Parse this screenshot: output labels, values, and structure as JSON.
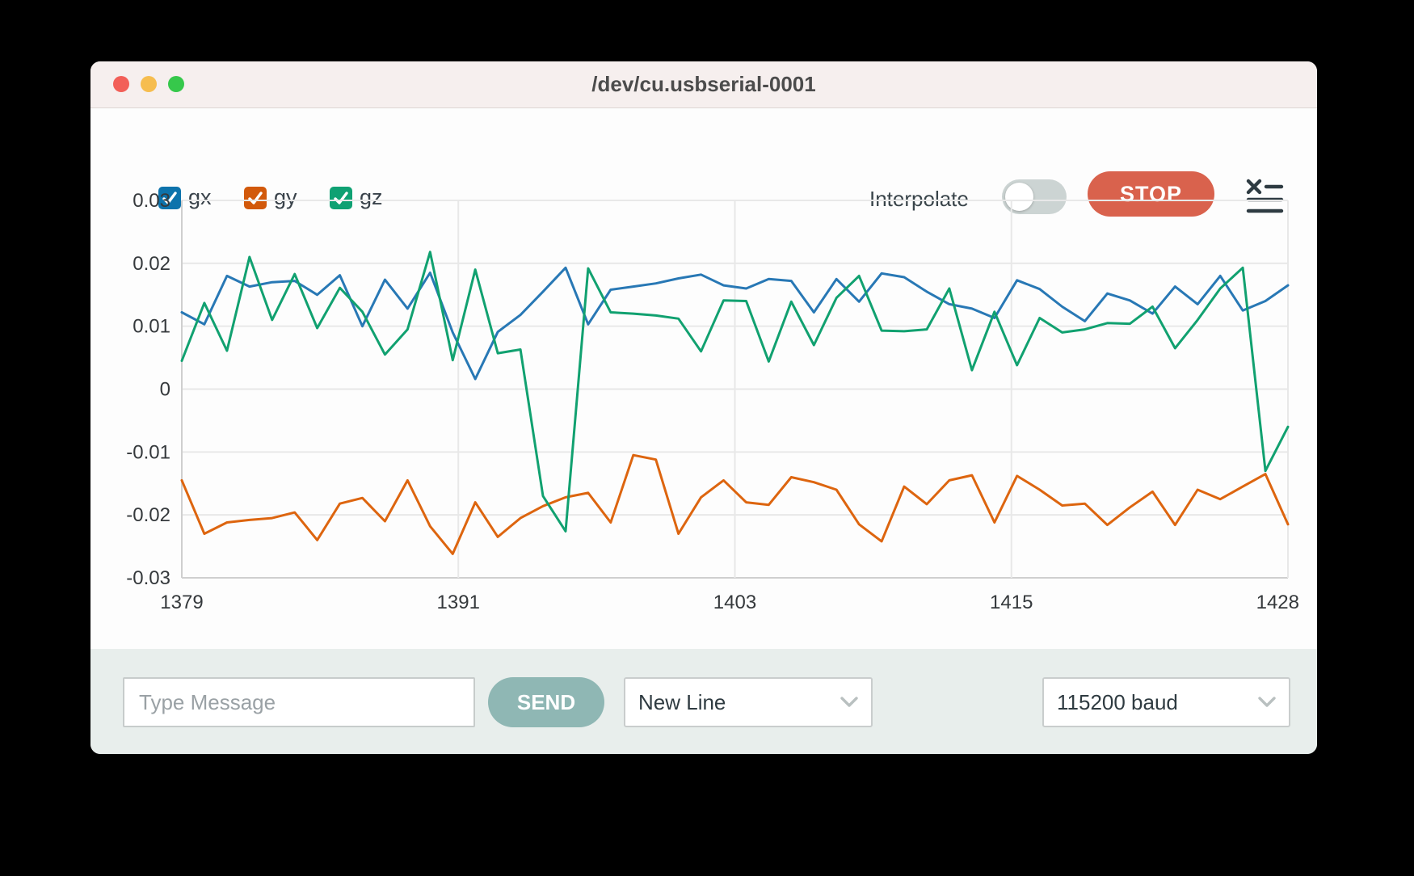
{
  "window": {
    "title": "/dev/cu.usbserial-0001"
  },
  "titlebar_buttons": [
    "close",
    "minimize",
    "zoom"
  ],
  "legend": [
    {
      "label": "gx",
      "checked": true,
      "color": "#0d73ac"
    },
    {
      "label": "gy",
      "checked": true,
      "color": "#d2590b"
    },
    {
      "label": "gz",
      "checked": true,
      "color": "#0fa173"
    }
  ],
  "controls": {
    "interpolate_label": "Interpolate",
    "interpolate_on": false,
    "stop_label": "STOP",
    "stop_color": "#d9624d",
    "clear_icon": "clear-list-icon"
  },
  "chart_data": {
    "type": "line",
    "title": "",
    "xlabel": "",
    "ylabel": "",
    "grid": true,
    "legend_position": "top-left-checkboxes",
    "ylim": [
      -0.03,
      0.03
    ],
    "y_ticks": [
      0.03,
      0.02,
      0.01,
      0,
      -0.01,
      -0.02,
      -0.03
    ],
    "y_tick_labels": [
      "0.03",
      "0.02",
      "0.01",
      "0",
      "-0.01",
      "-0.02",
      "-0.03"
    ],
    "x_ticks": [
      1379,
      1391,
      1403,
      1415,
      1428
    ],
    "x_tick_labels": [
      "1379",
      "1391",
      "1403",
      "1415",
      "1428"
    ],
    "xlim": [
      1379,
      1428
    ],
    "x": [
      1379,
      1380,
      1381,
      1382,
      1383,
      1384,
      1385,
      1386,
      1387,
      1388,
      1389,
      1390,
      1391,
      1392,
      1393,
      1394,
      1395,
      1396,
      1397,
      1398,
      1399,
      1400,
      1401,
      1402,
      1403,
      1404,
      1405,
      1406,
      1407,
      1408,
      1409,
      1410,
      1411,
      1412,
      1413,
      1414,
      1415,
      1416,
      1417,
      1418,
      1419,
      1420,
      1421,
      1422,
      1423,
      1424,
      1425,
      1426,
      1427,
      1428
    ],
    "series": [
      {
        "name": "gx",
        "color": "#2878b5",
        "values": [
          0.0122,
          0.0103,
          0.018,
          0.0163,
          0.017,
          0.0172,
          0.015,
          0.0181,
          0.01,
          0.0174,
          0.0128,
          0.0185,
          0.009,
          0.0016,
          0.0091,
          0.0118,
          0.0155,
          0.0193,
          0.0103,
          0.0158,
          0.0163,
          0.0168,
          0.0176,
          0.0182,
          0.0165,
          0.016,
          0.0175,
          0.0172,
          0.0122,
          0.0175,
          0.0139,
          0.0184,
          0.0178,
          0.0155,
          0.0135,
          0.0128,
          0.0113,
          0.0173,
          0.0159,
          0.0131,
          0.0108,
          0.0152,
          0.0141,
          0.012,
          0.0163,
          0.0135,
          0.018,
          0.0125,
          0.014,
          0.0165
        ]
      },
      {
        "name": "gy",
        "color": "#dd650f",
        "values": [
          -0.0145,
          -0.023,
          -0.0212,
          -0.0208,
          -0.0205,
          -0.0196,
          -0.024,
          -0.0182,
          -0.0173,
          -0.021,
          -0.0145,
          -0.0218,
          -0.0262,
          -0.018,
          -0.0235,
          -0.0205,
          -0.0186,
          -0.0172,
          -0.0165,
          -0.0212,
          -0.0105,
          -0.0112,
          -0.023,
          -0.0172,
          -0.0145,
          -0.018,
          -0.0184,
          -0.014,
          -0.0148,
          -0.016,
          -0.0215,
          -0.0242,
          -0.0155,
          -0.0183,
          -0.0145,
          -0.0137,
          -0.0212,
          -0.0138,
          -0.016,
          -0.0185,
          -0.0182,
          -0.0216,
          -0.0188,
          -0.0163,
          -0.0216,
          -0.016,
          -0.0175,
          -0.0155,
          -0.0135,
          -0.0215
        ]
      },
      {
        "name": "gz",
        "color": "#11a170",
        "values": [
          0.0045,
          0.0137,
          0.0061,
          0.021,
          0.011,
          0.0183,
          0.0097,
          0.0161,
          0.0123,
          0.0055,
          0.0095,
          0.0218,
          0.0046,
          0.019,
          0.0057,
          0.0063,
          -0.017,
          -0.0226,
          0.0192,
          0.0122,
          0.012,
          0.0117,
          0.0112,
          0.006,
          0.0141,
          0.014,
          0.0044,
          0.0139,
          0.007,
          0.0145,
          0.018,
          0.0093,
          0.0092,
          0.0095,
          0.016,
          0.003,
          0.0123,
          0.0038,
          0.0113,
          0.009,
          0.0095,
          0.0105,
          0.0104,
          0.0131,
          0.0065,
          0.011,
          0.016,
          0.0193,
          -0.013,
          -0.006
        ]
      }
    ]
  },
  "message_bar": {
    "input_value": "",
    "input_placeholder": "Type Message",
    "send_label": "SEND",
    "line_ending_selected": "New Line",
    "baud_selected": "115200 baud"
  }
}
